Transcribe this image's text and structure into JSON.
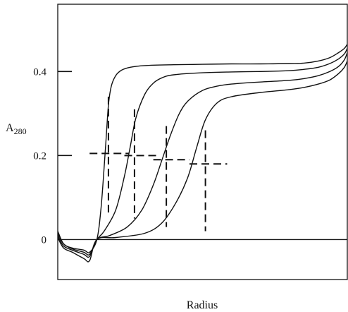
{
  "chart_data": {
    "type": "line",
    "title": "",
    "xlabel": "Radius",
    "ylabel": {
      "main": "A",
      "sub": "280"
    },
    "xlim": [
      0,
      1
    ],
    "ylim": [
      -0.095,
      0.56
    ],
    "yticks": [
      {
        "value": 0.4,
        "label": "0.4"
      },
      {
        "value": 0.2,
        "label": "0.2"
      },
      {
        "value": 0,
        "label": "0"
      }
    ],
    "baseline": 0,
    "series": [
      {
        "x": [
          0,
          0.02,
          0.05,
          0.09,
          0.11,
          0.135,
          0.15,
          0.165,
          0.175,
          0.185,
          0.2,
          0.22,
          0.25,
          0.3,
          0.4,
          0.5,
          0.6,
          0.7,
          0.8,
          0.85,
          0.9,
          0.94,
          0.97,
          0.99,
          1.0
        ],
        "y": [
          0.02,
          -0.01,
          -0.02,
          -0.025,
          -0.03,
          0.0,
          0.08,
          0.22,
          0.32,
          0.365,
          0.39,
          0.403,
          0.41,
          0.414,
          0.416,
          0.417,
          0.418,
          0.418,
          0.419,
          0.42,
          0.425,
          0.433,
          0.445,
          0.455,
          0.465
        ]
      },
      {
        "x": [
          0,
          0.02,
          0.05,
          0.09,
          0.11,
          0.135,
          0.16,
          0.2,
          0.23,
          0.25,
          0.27,
          0.3,
          0.33,
          0.36,
          0.4,
          0.5,
          0.6,
          0.7,
          0.8,
          0.85,
          0.9,
          0.94,
          0.97,
          0.99,
          1.0
        ],
        "y": [
          0.015,
          -0.01,
          -0.022,
          -0.03,
          -0.035,
          0.0,
          0.02,
          0.07,
          0.15,
          0.22,
          0.29,
          0.345,
          0.372,
          0.385,
          0.392,
          0.397,
          0.399,
          0.4,
          0.402,
          0.405,
          0.41,
          0.419,
          0.43,
          0.442,
          0.455
        ]
      },
      {
        "x": [
          0,
          0.02,
          0.05,
          0.09,
          0.11,
          0.135,
          0.18,
          0.24,
          0.29,
          0.33,
          0.36,
          0.39,
          0.42,
          0.45,
          0.5,
          0.55,
          0.6,
          0.7,
          0.8,
          0.85,
          0.9,
          0.94,
          0.97,
          0.99,
          1.0
        ],
        "y": [
          0.01,
          -0.015,
          -0.025,
          -0.035,
          -0.04,
          0.0,
          0.01,
          0.03,
          0.07,
          0.13,
          0.19,
          0.25,
          0.3,
          0.33,
          0.355,
          0.365,
          0.37,
          0.375,
          0.379,
          0.383,
          0.39,
          0.4,
          0.412,
          0.428,
          0.445
        ]
      },
      {
        "x": [
          0,
          0.02,
          0.05,
          0.09,
          0.11,
          0.135,
          0.2,
          0.3,
          0.36,
          0.41,
          0.45,
          0.48,
          0.51,
          0.55,
          0.6,
          0.7,
          0.8,
          0.85,
          0.9,
          0.94,
          0.97,
          0.99,
          1.0
        ],
        "y": [
          0.005,
          -0.02,
          -0.03,
          -0.045,
          -0.05,
          0.0,
          0.005,
          0.015,
          0.04,
          0.09,
          0.15,
          0.22,
          0.285,
          0.325,
          0.34,
          0.35,
          0.357,
          0.362,
          0.37,
          0.38,
          0.395,
          0.41,
          0.425
        ]
      }
    ],
    "boundary_markers": [
      {
        "x": 0.175,
        "y": 0.205,
        "vspan": [
          0.06,
          0.34
        ],
        "hspan": [
          0.11,
          0.245
        ]
      },
      {
        "x": 0.265,
        "y": 0.2,
        "vspan": [
          0.05,
          0.31
        ],
        "hspan": [
          0.23,
          0.345
        ]
      },
      {
        "x": 0.375,
        "y": 0.19,
        "vspan": [
          0.03,
          0.27
        ],
        "hspan": [
          0.33,
          0.455
        ]
      },
      {
        "x": 0.51,
        "y": 0.18,
        "vspan": [
          0.02,
          0.26
        ],
        "hspan": [
          0.455,
          0.585
        ]
      }
    ],
    "grid": false,
    "legend": "none"
  }
}
